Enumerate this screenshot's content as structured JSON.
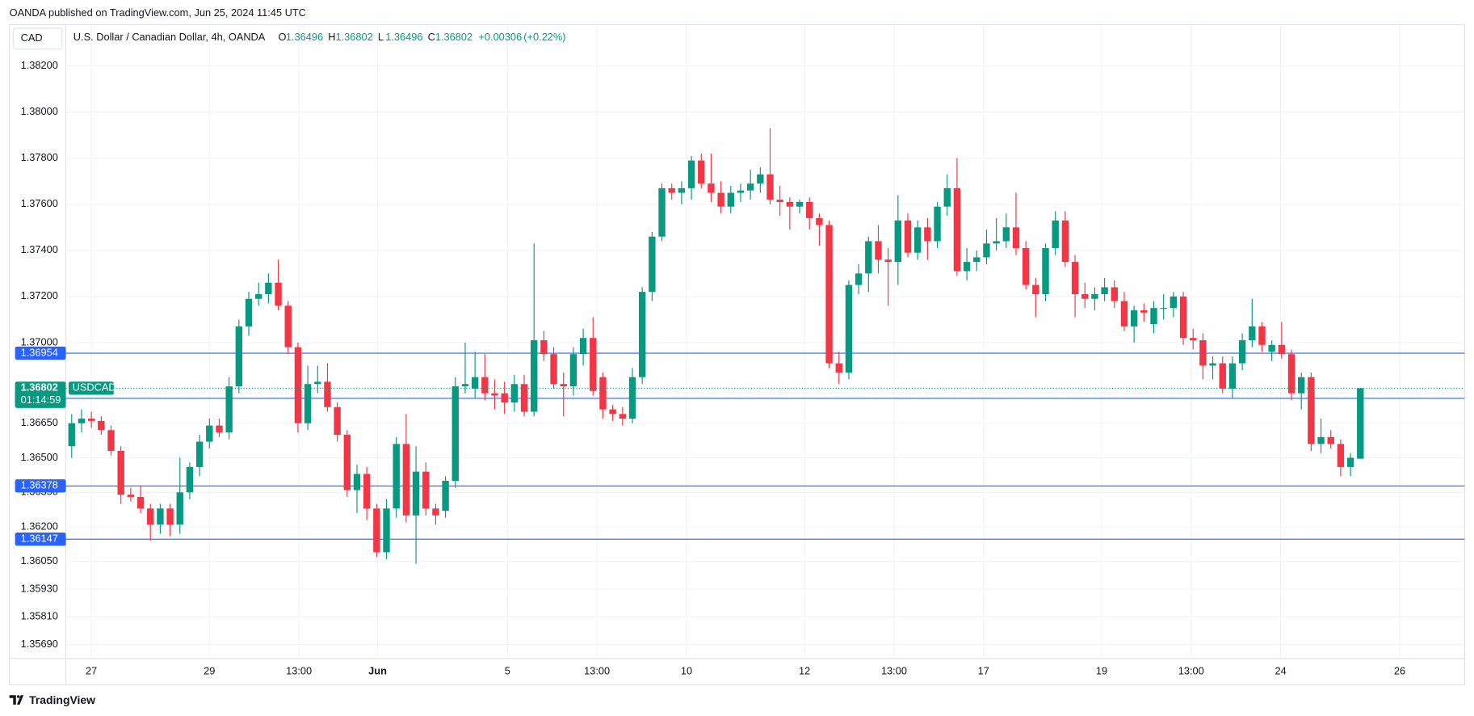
{
  "chart_data": {
    "type": "candlestick",
    "subtitle": "OANDA published on TradingView.com, Jun 25, 2024 11:45 UTC",
    "title": "U.S. Dollar / Canadian Dollar, 4h, OANDA",
    "currency": "CAD",
    "ohlc_labels": [
      "O",
      "H",
      "L",
      "C"
    ],
    "ohlc_values": [
      1.36496,
      1.36802,
      1.36496,
      1.36802
    ],
    "change": "+0.00306",
    "change_pct": "(+0.22%)",
    "brand": "TradingView",
    "up_color": "#089981",
    "down_color": "#f23645",
    "grid": true,
    "categories": [
      null,
      null,
      null,
      null,
      null,
      null,
      null,
      null,
      null,
      null,
      null,
      null,
      null,
      null,
      null,
      null,
      null,
      null,
      null,
      null,
      null,
      null,
      null,
      null,
      null,
      null,
      null,
      null,
      null,
      null,
      null,
      null,
      null,
      null,
      null,
      null,
      null,
      null,
      null,
      null,
      null,
      null,
      null,
      null,
      null,
      null,
      null,
      null,
      null,
      null,
      null,
      null,
      null,
      null,
      null,
      null,
      null,
      null,
      null,
      null,
      null,
      null,
      null,
      null,
      null,
      null,
      null,
      null,
      null,
      null,
      null,
      null,
      null,
      null,
      null,
      null,
      null,
      null,
      null,
      null,
      null,
      null,
      null,
      null,
      null,
      null,
      null,
      null,
      null,
      null,
      null,
      null,
      null,
      null,
      null,
      null,
      null,
      null,
      null,
      null,
      null,
      null,
      null,
      null,
      null,
      null,
      null,
      null,
      null,
      null,
      null,
      null,
      null,
      null,
      null,
      null,
      null,
      null,
      null,
      null,
      null,
      null,
      null,
      null,
      null,
      null,
      null,
      null,
      null,
      null,
      null,
      null
    ],
    "open": [
      1.3655,
      1.3665,
      1.3667,
      1.3666,
      1.3662,
      1.3653,
      1.3634,
      1.3633,
      1.3628,
      1.3621,
      1.3628,
      1.3621,
      1.3635,
      1.3646,
      1.3657,
      1.3664,
      1.3661,
      1.3681,
      1.3707,
      1.3719,
      1.3721,
      1.3726,
      1.3716,
      1.3698,
      1.3665,
      1.3682,
      1.3683,
      1.3672,
      1.366,
      1.3636,
      1.3643,
      1.3628,
      1.3609,
      1.3628,
      1.3656,
      1.3625,
      1.3644,
      1.3628,
      1.3627,
      1.364,
      1.3681,
      1.368,
      1.3685,
      1.3678,
      1.3678,
      1.3674,
      1.3682,
      1.367,
      1.3701,
      1.3695,
      1.3682,
      1.3681,
      1.3695,
      1.3702,
      1.3685,
      1.3671,
      1.3669,
      1.3667,
      1.3685,
      1.3722,
      1.3746,
      1.3767,
      1.3765,
      1.3767,
      1.3779,
      1.3769,
      1.3765,
      1.3759,
      1.3765,
      1.3766,
      1.3769,
      1.3773,
      1.3762,
      1.3761,
      1.3759,
      1.3761,
      1.3754,
      1.3751,
      1.3691,
      1.3687,
      1.3725,
      1.373,
      1.3744,
      1.3736,
      1.3735,
      1.3753,
      1.3739,
      1.375,
      1.3744,
      1.3759,
      1.3767,
      1.3731,
      1.3735,
      1.3737,
      1.3743,
      1.3744,
      1.375,
      1.3741,
      1.3725,
      1.3721,
      1.3741,
      1.3753,
      1.3735,
      1.3721,
      1.3719,
      1.3721,
      1.3724,
      1.3718,
      1.3707,
      1.3714,
      1.3708,
      1.3715,
      1.3715,
      1.372,
      1.3702,
      1.3701,
      1.369,
      1.3691,
      1.368,
      1.3691,
      1.3701,
      1.3707,
      1.3696,
      1.3699,
      1.3695,
      1.3678,
      1.3685,
      1.3656,
      1.3659,
      1.3656,
      1.3646,
      1.36496
    ],
    "high": [
      1.3669,
      1.3671,
      1.367,
      1.3668,
      1.3664,
      1.3655,
      1.3637,
      1.3638,
      1.363,
      1.363,
      1.363,
      1.365,
      1.3648,
      1.366,
      1.3667,
      1.3667,
      1.3685,
      1.371,
      1.3722,
      1.3726,
      1.373,
      1.3736,
      1.3718,
      1.37,
      1.369,
      1.369,
      1.3691,
      1.3674,
      1.3662,
      1.3647,
      1.3646,
      1.363,
      1.3632,
      1.3659,
      1.3669,
      1.3655,
      1.3648,
      1.363,
      1.3642,
      1.3685,
      1.37,
      1.3696,
      1.3695,
      1.3684,
      1.3683,
      1.3686,
      1.3686,
      1.3743,
      1.3705,
      1.3698,
      1.3687,
      1.3698,
      1.3706,
      1.3711,
      1.3687,
      1.3673,
      1.3672,
      1.3689,
      1.3724,
      1.3748,
      1.3769,
      1.3769,
      1.377,
      1.3781,
      1.3782,
      1.3782,
      1.377,
      1.3768,
      1.3769,
      1.3775,
      1.3776,
      1.3793,
      1.3768,
      1.3763,
      1.3762,
      1.3763,
      1.3756,
      1.3753,
      1.3696,
      1.3727,
      1.3734,
      1.3746,
      1.3751,
      1.3741,
      1.3764,
      1.3756,
      1.3753,
      1.3754,
      1.3761,
      1.3773,
      1.378,
      1.3741,
      1.374,
      1.3749,
      1.3754,
      1.3756,
      1.3765,
      1.3744,
      1.3728,
      1.3743,
      1.3757,
      1.3757,
      1.3738,
      1.3726,
      1.3724,
      1.3728,
      1.3727,
      1.3722,
      1.3716,
      1.3717,
      1.3718,
      1.3721,
      1.3722,
      1.3722,
      1.3706,
      1.3704,
      1.3694,
      1.3694,
      1.3694,
      1.3704,
      1.3719,
      1.3709,
      1.3701,
      1.3709,
      1.3697,
      1.3687,
      1.3687,
      1.3667,
      1.3662,
      1.3658,
      1.3652,
      1.36802
    ],
    "low": [
      1.365,
      1.3661,
      1.3663,
      1.366,
      1.3651,
      1.363,
      1.3631,
      1.3626,
      1.3614,
      1.3617,
      1.3616,
      1.3617,
      1.3632,
      1.3642,
      1.3654,
      1.3659,
      1.3658,
      1.3678,
      1.3703,
      1.3716,
      1.3717,
      1.3714,
      1.3695,
      1.3661,
      1.3662,
      1.3678,
      1.367,
      1.3657,
      1.3633,
      1.3626,
      1.3623,
      1.3607,
      1.3606,
      1.3624,
      1.3622,
      1.3604,
      1.3625,
      1.3621,
      1.3624,
      1.3637,
      1.3678,
      1.3676,
      1.3675,
      1.3671,
      1.3669,
      1.367,
      1.3668,
      1.3668,
      1.3692,
      1.368,
      1.3668,
      1.3677,
      1.369,
      1.3677,
      1.3667,
      1.3666,
      1.3664,
      1.3665,
      1.3682,
      1.3718,
      1.3744,
      1.3762,
      1.376,
      1.3762,
      1.3767,
      1.3761,
      1.3756,
      1.3756,
      1.3761,
      1.3762,
      1.3765,
      1.376,
      1.3755,
      1.3749,
      1.3756,
      1.3749,
      1.3742,
      1.3689,
      1.3682,
      1.3684,
      1.3721,
      1.3722,
      1.373,
      1.3716,
      1.3725,
      1.3737,
      1.3736,
      1.3736,
      1.3741,
      1.3755,
      1.3729,
      1.3727,
      1.3731,
      1.3734,
      1.374,
      1.3741,
      1.3738,
      1.3723,
      1.3711,
      1.3718,
      1.3738,
      1.3733,
      1.3711,
      1.3715,
      1.3714,
      1.3718,
      1.3715,
      1.3705,
      1.37,
      1.3709,
      1.3704,
      1.371,
      1.3711,
      1.3699,
      1.3697,
      1.3684,
      1.3684,
      1.3678,
      1.3676,
      1.3688,
      1.3698,
      1.3696,
      1.3692,
      1.3693,
      1.3675,
      1.3671,
      1.3653,
      1.3652,
      1.3654,
      1.3642,
      1.3642,
      1.36496
    ],
    "close": [
      1.3665,
      1.3667,
      1.3666,
      1.3662,
      1.3653,
      1.3634,
      1.3633,
      1.3628,
      1.3621,
      1.3628,
      1.3621,
      1.3635,
      1.3646,
      1.3657,
      1.3664,
      1.3661,
      1.3681,
      1.3707,
      1.3719,
      1.3721,
      1.3726,
      1.3716,
      1.3698,
      1.3665,
      1.3682,
      1.3683,
      1.3672,
      1.366,
      1.3636,
      1.3643,
      1.3628,
      1.3609,
      1.3628,
      1.3656,
      1.3625,
      1.3644,
      1.3628,
      1.3625,
      1.364,
      1.3681,
      1.3682,
      1.3685,
      1.3678,
      1.3677,
      1.3674,
      1.3682,
      1.367,
      1.3701,
      1.3695,
      1.3682,
      1.3681,
      1.3695,
      1.3702,
      1.3679,
      1.3671,
      1.3669,
      1.3667,
      1.3685,
      1.3722,
      1.3746,
      1.3767,
      1.3765,
      1.3767,
      1.3779,
      1.3769,
      1.3765,
      1.3759,
      1.3765,
      1.3766,
      1.3769,
      1.3773,
      1.3762,
      1.3761,
      1.3759,
      1.3761,
      1.3754,
      1.3751,
      1.3691,
      1.3687,
      1.3725,
      1.373,
      1.3744,
      1.3736,
      1.3735,
      1.3753,
      1.3739,
      1.375,
      1.3744,
      1.3759,
      1.3767,
      1.3731,
      1.3735,
      1.3737,
      1.3743,
      1.3744,
      1.375,
      1.3741,
      1.3725,
      1.3721,
      1.3741,
      1.3753,
      1.3735,
      1.3721,
      1.3719,
      1.3721,
      1.3724,
      1.3718,
      1.3707,
      1.3714,
      1.3713,
      1.3715,
      1.3715,
      1.372,
      1.3702,
      1.3701,
      1.369,
      1.3691,
      1.368,
      1.3691,
      1.3701,
      1.3707,
      1.3699,
      1.3699,
      1.3695,
      1.3678,
      1.3685,
      1.3656,
      1.3659,
      1.3656,
      1.3646,
      1.365,
      1.36802
    ],
    "xlim": [
      -0.6,
      141.6
    ],
    "xticks": [
      {
        "value": 2.0,
        "label": "27"
      },
      {
        "value": 14.0,
        "label": "29"
      },
      {
        "value": 23.1,
        "label": "13:00"
      },
      {
        "value": 31.1,
        "label": "Jun"
      },
      {
        "value": 44.3,
        "label": "5"
      },
      {
        "value": 53.4,
        "label": "13:00"
      },
      {
        "value": 62.5,
        "label": "10"
      },
      {
        "value": 74.5,
        "label": "12"
      },
      {
        "value": 83.6,
        "label": "13:00"
      },
      {
        "value": 92.7,
        "label": "17"
      },
      {
        "value": 104.7,
        "label": "19"
      },
      {
        "value": 113.8,
        "label": "13:00"
      },
      {
        "value": 122.9,
        "label": "24"
      },
      {
        "value": 135.0,
        "label": "26"
      }
    ],
    "ylim": [
      1.35629,
      1.3838
    ],
    "yticks": [
      {
        "value": 1.382,
        "label": "1.38200"
      },
      {
        "value": 1.38,
        "label": "1.38000"
      },
      {
        "value": 1.378,
        "label": "1.37800"
      },
      {
        "value": 1.376,
        "label": "1.37600"
      },
      {
        "value": 1.374,
        "label": "1.37400"
      },
      {
        "value": 1.372,
        "label": "1.37200"
      },
      {
        "value": 1.37,
        "label": "1.37000"
      },
      {
        "value": 1.3665,
        "label": "1.36650"
      },
      {
        "value": 1.365,
        "label": "1.36500"
      },
      {
        "value": 1.3635,
        "label": "1.36350"
      },
      {
        "value": 1.362,
        "label": "1.36200"
      },
      {
        "value": 1.3605,
        "label": "1.36050"
      },
      {
        "value": 1.3593,
        "label": "1.35930"
      },
      {
        "value": 1.3581,
        "label": "1.35810"
      },
      {
        "value": 1.3569,
        "label": "1.35690"
      }
    ],
    "hlines": [
      1.36954,
      1.36758,
      1.36378,
      1.36147
    ],
    "hline_color": "#2962ff",
    "last_price": 1.36802,
    "symbol": "USDCAD",
    "countdown": "01:14:59"
  }
}
